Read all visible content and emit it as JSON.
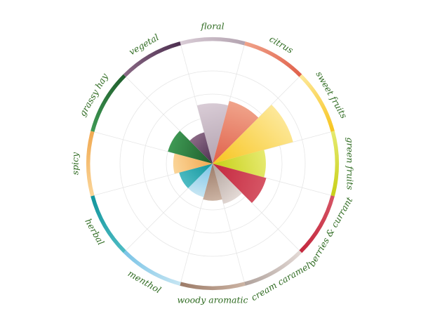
{
  "chart_data": {
    "type": "polar-area",
    "title": "",
    "rmax": 5,
    "grid_rings": [
      1,
      2,
      3,
      4
    ],
    "grid": true,
    "categories": [
      {
        "name": "floral",
        "value": 2.6,
        "color_light": "#d9ccd6",
        "color_dark": "#b3a3b0"
      },
      {
        "name": "citrus",
        "value": 2.8,
        "color_light": "#f0a38a",
        "color_dark": "#e0604a"
      },
      {
        "name": "sweet fruits",
        "value": 3.6,
        "color_light": "#fde89a",
        "color_dark": "#f7c51f"
      },
      {
        "name": "green fruits",
        "value": 2.3,
        "color_light": "#e6ea70",
        "color_dark": "#c7cf17"
      },
      {
        "name": "berries & currant",
        "value": 2.4,
        "color_light": "#d65565",
        "color_dark": "#c4283e"
      },
      {
        "name": "cream caramel",
        "value": 1.8,
        "color_light": "#e4dad6",
        "color_dark": "#b0a29c"
      },
      {
        "name": "woody aromatic",
        "value": 1.6,
        "color_light": "#ccb4a4",
        "color_dark": "#9c7b68"
      },
      {
        "name": "menthol",
        "value": 1.5,
        "color_light": "#c7e6f3",
        "color_dark": "#79c3e6"
      },
      {
        "name": "herbal",
        "value": 1.5,
        "color_light": "#4fbcc4",
        "color_dark": "#11959c"
      },
      {
        "name": "spicy",
        "value": 1.7,
        "color_light": "#fbd69a",
        "color_dark": "#f0a850"
      },
      {
        "name": "grassy hay",
        "value": 2.0,
        "color_light": "#3f9a55",
        "color_dark": "#1f5d2b"
      },
      {
        "name": "vegetal",
        "value": 1.4,
        "color_light": "#8b6a86",
        "color_dark": "#4d2f50"
      }
    ]
  }
}
